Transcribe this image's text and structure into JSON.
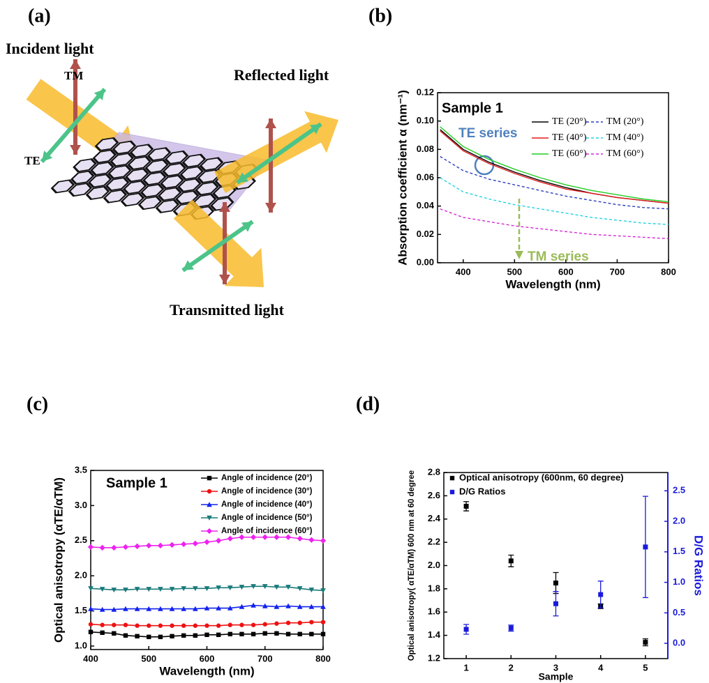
{
  "panel_labels": [
    "(a)",
    "(b)",
    "(c)",
    "(d)"
  ],
  "diagram": {
    "labels": [
      "Incident light",
      "TM",
      "TE",
      "Reflected light",
      "Transmitted light"
    ]
  },
  "chart_data": [
    {
      "type": "line",
      "x_label": "Wavelength (nm)",
      "y_label": "Absorption coefficient  α (nm⁻¹)",
      "annotations": [
        {
          "text": "Sample 1",
          "color": "#000000"
        },
        {
          "text": "TE series",
          "color": "#4f81bd"
        },
        {
          "text": "TM series",
          "color": "#9bbb59"
        }
      ],
      "x": [
        355,
        400,
        450,
        500,
        550,
        600,
        650,
        700,
        750,
        800
      ],
      "xlim": [
        350,
        800
      ],
      "xticks": [
        400,
        500,
        600,
        700,
        800
      ],
      "ylim": [
        0,
        0.12
      ],
      "yticks": [
        {
          "value": 0,
          "label": "0.00"
        },
        {
          "value": 0.02,
          "label": "0.02"
        },
        {
          "value": 0.04,
          "label": "0.04"
        },
        {
          "value": 0.06,
          "label": "0.06"
        },
        {
          "value": 0.08,
          "label": "0.08"
        },
        {
          "value": 0.1,
          "label": "0.10"
        },
        {
          "value": 0.12,
          "label": "0.12"
        }
      ],
      "series": [
        {
          "name": "TE (20°)",
          "color": "#000000",
          "line_style": "solid",
          "values": [
            0.094,
            0.08,
            0.071,
            0.064,
            0.058,
            0.053,
            0.049,
            0.046,
            0.044,
            0.042
          ]
        },
        {
          "name": "TE (40°)",
          "color": "#e41a1c",
          "line_style": "solid",
          "values": [
            0.093,
            0.079,
            0.07,
            0.063,
            0.057,
            0.052,
            0.049,
            0.046,
            0.044,
            0.042
          ]
        },
        {
          "name": "TE (60°)",
          "color": "#22cc22",
          "line_style": "solid",
          "values": [
            0.096,
            0.082,
            0.073,
            0.066,
            0.06,
            0.055,
            0.051,
            0.048,
            0.045,
            0.043
          ]
        },
        {
          "name": "TM (20°)",
          "color": "#2b3fbf",
          "line_style": "dashed",
          "values": [
            0.075,
            0.065,
            0.059,
            0.055,
            0.051,
            0.047,
            0.044,
            0.041,
            0.039,
            0.038
          ]
        },
        {
          "name": "TM (40°)",
          "color": "#22d3e0",
          "line_style": "dashed",
          "values": [
            0.06,
            0.05,
            0.045,
            0.041,
            0.038,
            0.035,
            0.032,
            0.03,
            0.028,
            0.027
          ]
        },
        {
          "name": "TM (60°)",
          "color": "#d42ad0",
          "line_style": "dashed",
          "values": [
            0.038,
            0.032,
            0.029,
            0.026,
            0.024,
            0.022,
            0.02,
            0.019,
            0.018,
            0.017
          ]
        }
      ]
    },
    {
      "type": "line",
      "x_label": "Wavelength (nm)",
      "y_label": "Optical anisotropy (αTE/αTM)",
      "annotations": [
        {
          "text": "Sample 1",
          "color": "#000000"
        }
      ],
      "x": [
        400,
        420,
        440,
        460,
        480,
        500,
        520,
        540,
        560,
        580,
        600,
        620,
        640,
        660,
        680,
        700,
        720,
        740,
        760,
        780,
        800
      ],
      "xlim": [
        400,
        800
      ],
      "xticks": [
        400,
        500,
        600,
        700,
        800
      ],
      "ylim": [
        0.95,
        3.5
      ],
      "yticks": [
        {
          "value": 1,
          "label": "1.0"
        },
        1.5,
        {
          "value": 2,
          "label": "2.0"
        },
        2.5,
        {
          "value": 3,
          "label": "3.0"
        },
        3.5
      ],
      "series": [
        {
          "name": "Angle of incidence (20°)",
          "color": "#000000",
          "marker": "square",
          "values": [
            1.2,
            1.19,
            1.18,
            1.15,
            1.14,
            1.13,
            1.13,
            1.14,
            1.15,
            1.15,
            1.16,
            1.16,
            1.17,
            1.17,
            1.17,
            1.18,
            1.18,
            1.17,
            1.17,
            1.17,
            1.17
          ]
        },
        {
          "name": "Angle of incidence (30°)",
          "color": "#ee1111",
          "marker": "circle",
          "values": [
            1.31,
            1.3,
            1.3,
            1.3,
            1.29,
            1.29,
            1.29,
            1.29,
            1.29,
            1.29,
            1.29,
            1.29,
            1.3,
            1.3,
            1.3,
            1.31,
            1.32,
            1.33,
            1.33,
            1.34,
            1.34
          ]
        },
        {
          "name": "Angle of incidence (40°)",
          "color": "#1122ee",
          "marker": "triangle-up",
          "values": [
            1.53,
            1.52,
            1.52,
            1.53,
            1.53,
            1.53,
            1.53,
            1.53,
            1.53,
            1.53,
            1.54,
            1.54,
            1.54,
            1.56,
            1.58,
            1.57,
            1.56,
            1.57,
            1.56,
            1.56,
            1.56
          ]
        },
        {
          "name": "Angle of incidence (50°)",
          "color": "#1a7a7a",
          "marker": "triangle-down",
          "values": [
            1.82,
            1.81,
            1.8,
            1.8,
            1.81,
            1.81,
            1.81,
            1.81,
            1.82,
            1.82,
            1.82,
            1.83,
            1.83,
            1.84,
            1.85,
            1.85,
            1.84,
            1.84,
            1.82,
            1.8,
            1.79
          ]
        },
        {
          "name": "Angle of incidence (60°)",
          "color": "#ee22ee",
          "marker": "diamond",
          "values": [
            2.41,
            2.4,
            2.4,
            2.41,
            2.42,
            2.43,
            2.43,
            2.44,
            2.45,
            2.46,
            2.48,
            2.5,
            2.53,
            2.55,
            2.55,
            2.55,
            2.55,
            2.55,
            2.53,
            2.51,
            2.5
          ]
        }
      ]
    },
    {
      "type": "scatter",
      "x_label": "Sample",
      "y_label": "Optical anisotropy( αTE/αTM) 600 nm at 60 degree",
      "y2_label": "D/G Ratios",
      "y2_color": "#1a1adb",
      "x": [
        1,
        2,
        3,
        4,
        5
      ],
      "xlim": [
        0.5,
        5.5
      ],
      "xticks": [
        1,
        2,
        3,
        4,
        5
      ],
      "ylim": [
        1.2,
        2.8
      ],
      "yticks": [
        1.2,
        1.4,
        1.6,
        1.8,
        {
          "value": 2,
          "label": "2.0"
        },
        2.2,
        2.4,
        2.6,
        2.8
      ],
      "y2lim": [
        -0.25,
        2.8
      ],
      "y2ticks": [
        {
          "value": 0,
          "label": "0.0"
        },
        0.5,
        {
          "value": 1,
          "label": "1.0"
        },
        1.5,
        {
          "value": 2,
          "label": "2.0"
        },
        2.5
      ],
      "series": [
        {
          "name": "Optical anisotropy (600nm, 60 degree)",
          "color": "#000000",
          "marker": "square",
          "values": [
            2.51,
            2.04,
            1.85,
            1.65,
            1.34
          ],
          "errors": [
            0.04,
            0.05,
            0.09,
            0.02,
            0.03
          ]
        },
        {
          "name": "D/G Ratios",
          "color": "#1a1adb",
          "marker": "square",
          "axis": "y2",
          "values": [
            0.23,
            0.25,
            0.65,
            0.8,
            1.58
          ],
          "errors": [
            0.08,
            0.05,
            0.2,
            0.22,
            0.83
          ]
        }
      ]
    }
  ]
}
